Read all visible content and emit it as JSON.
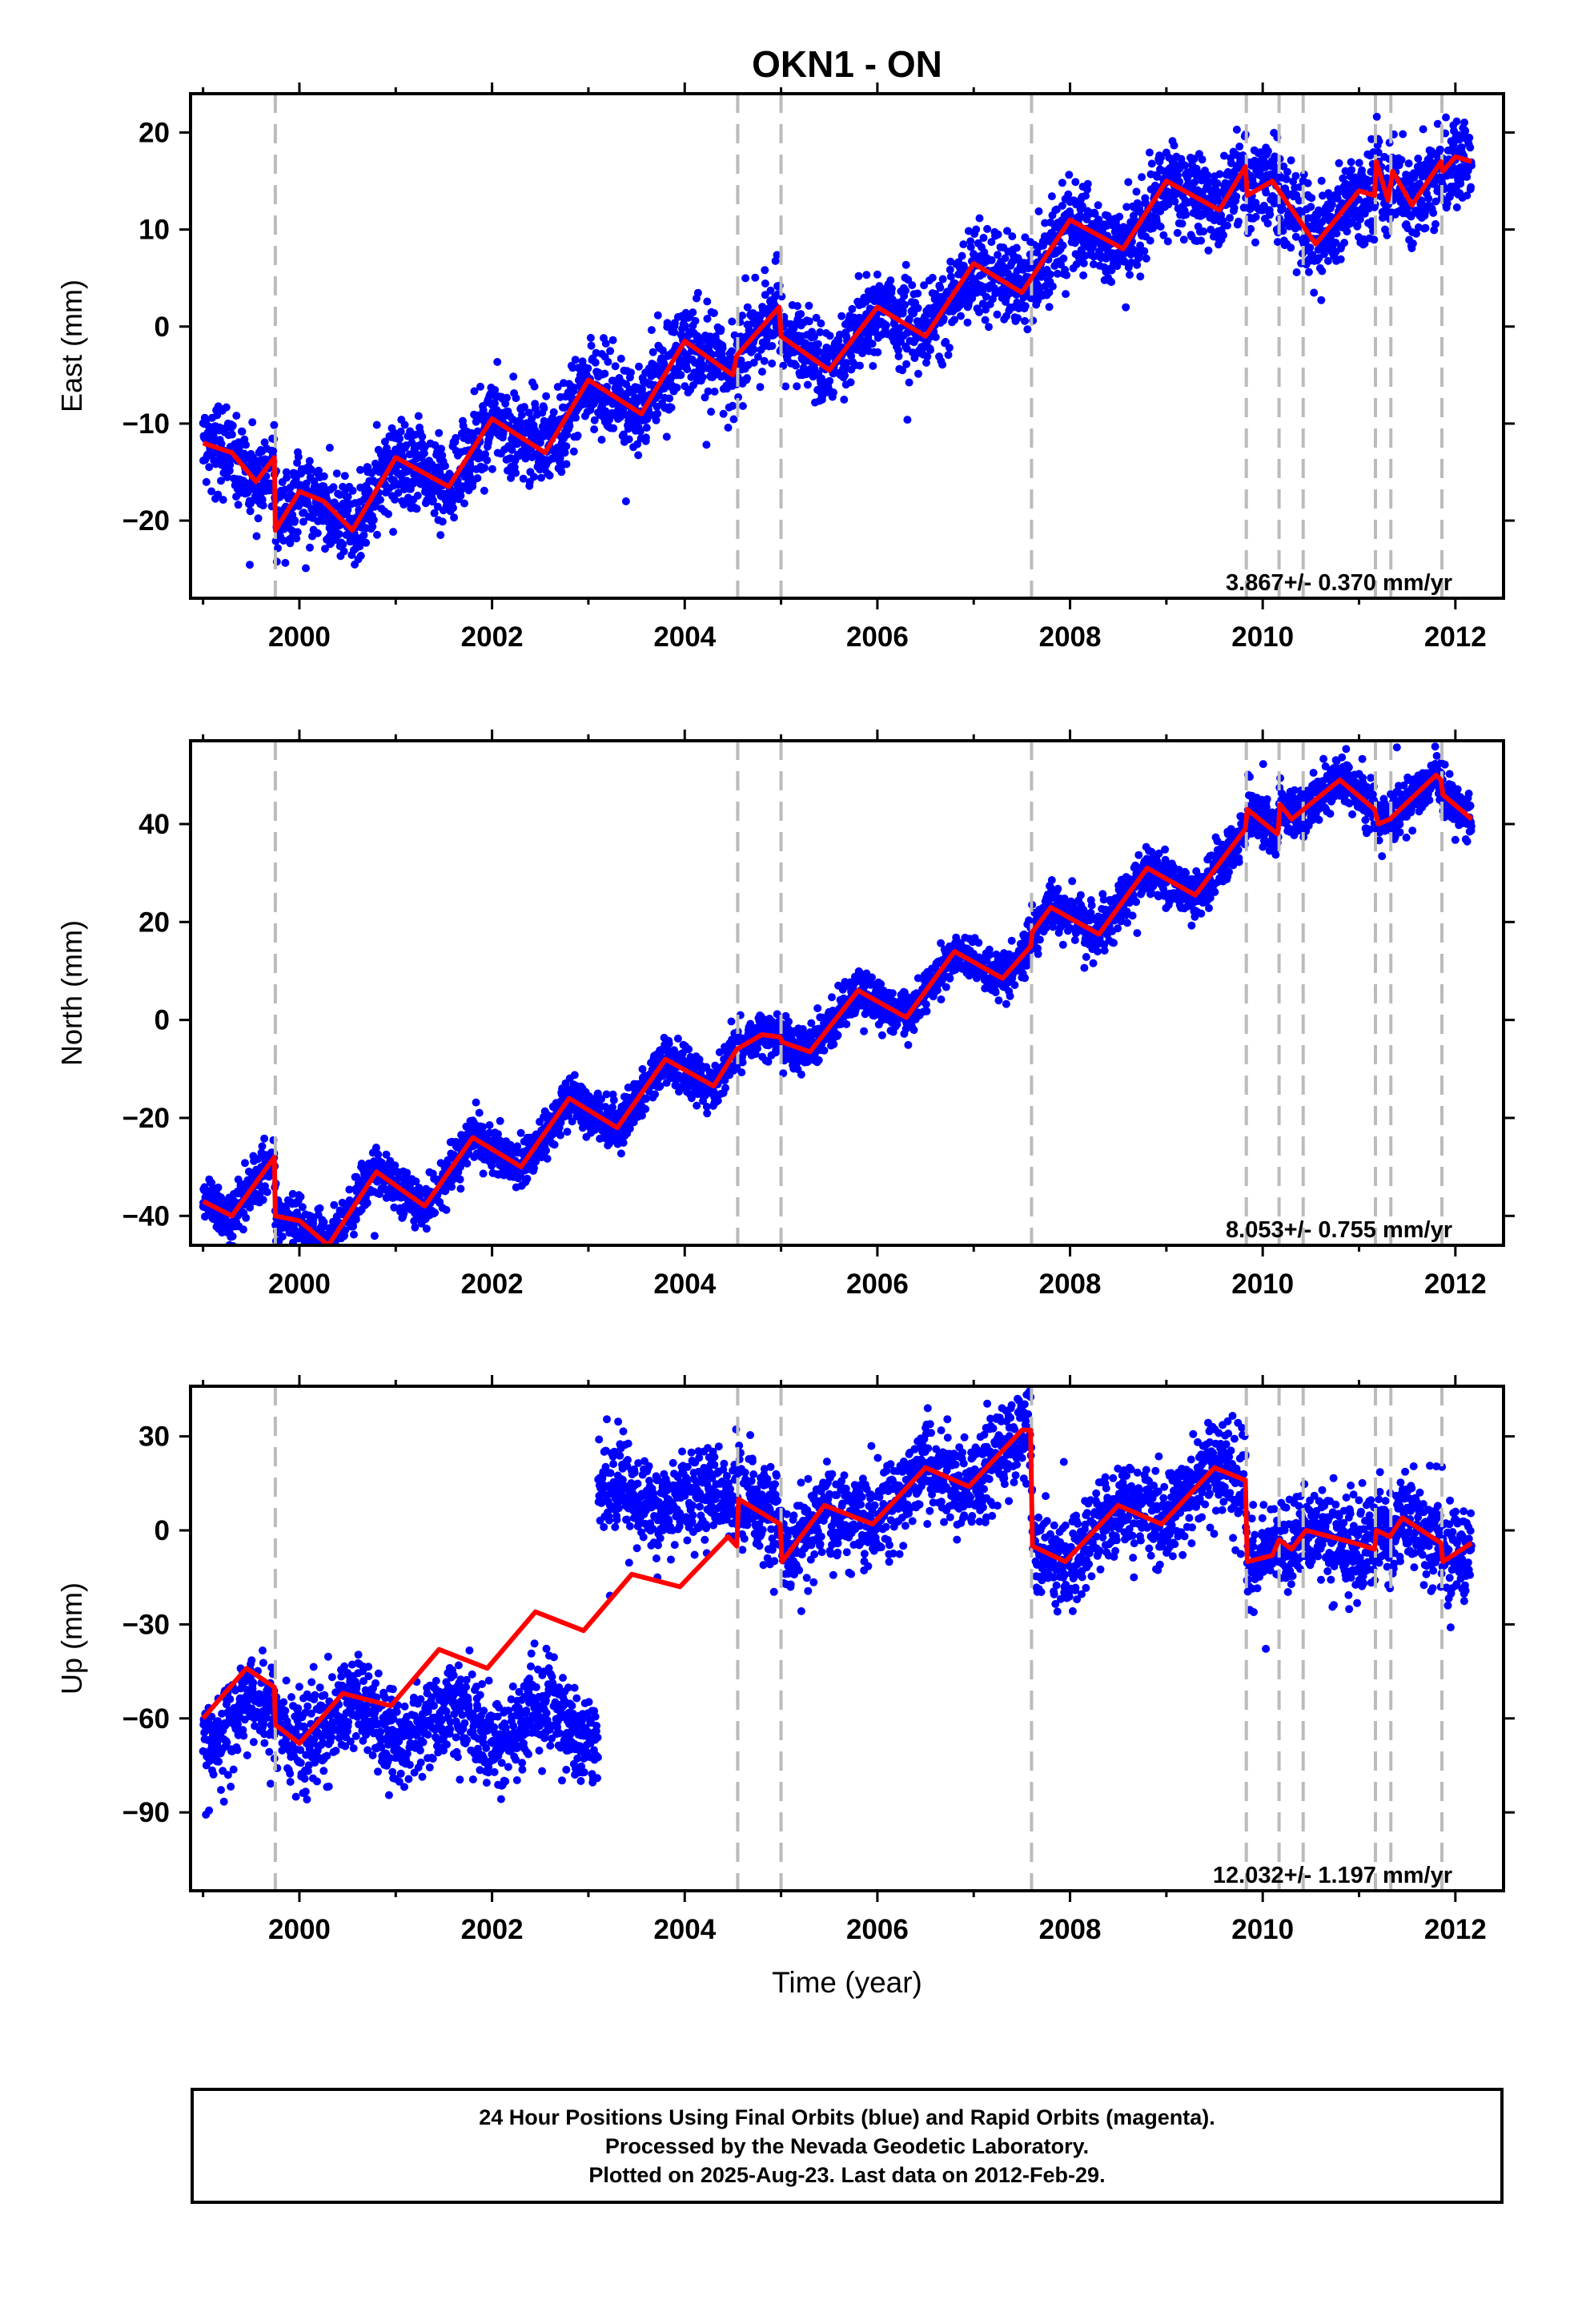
{
  "colors": {
    "observations": "#0000ff",
    "model": "#ff0000",
    "offsets": "#bbbbbb",
    "frame": "#000000"
  },
  "chart_data": {
    "type": "scatter",
    "title": "OKN1 - ON",
    "xlabel": "Time (year)",
    "xlim": [
      1998.87,
      2012.5
    ],
    "xticks": [
      2000,
      2002,
      2004,
      2006,
      2008,
      2010,
      2012
    ],
    "xtick_labels": [
      "2000",
      "2002",
      "2004",
      "2006",
      "2008",
      "2010",
      "2012"
    ],
    "offset_epochs": [
      1999.75,
      2004.55,
      2005.0,
      2007.6,
      2009.83,
      2010.17,
      2010.42,
      2011.17,
      2011.33,
      2011.86
    ],
    "data_start": 1999.0,
    "data_end": "2012-Feb-29",
    "panels": [
      {
        "name": "east",
        "ylabel": "East (mm)",
        "ylim": [
          -28,
          24
        ],
        "yticks": [
          -20,
          -10,
          0,
          10,
          20
        ],
        "ytick_labels": [
          "−20",
          "−10",
          "0",
          "10",
          "20"
        ],
        "rate_label": "3.867+/- 0.370 mm/yr",
        "model": [
          [
            1999.0,
            -12.0
          ],
          [
            1999.3,
            -13.0
          ],
          [
            1999.55,
            -16.0
          ],
          [
            1999.74,
            -13.5
          ],
          [
            1999.75,
            -21.0
          ],
          [
            2000.0,
            -17.0
          ],
          [
            2000.25,
            -18.0
          ],
          [
            2000.55,
            -21.0
          ],
          [
            2001.0,
            -13.5
          ],
          [
            2001.55,
            -16.5
          ],
          [
            2002.0,
            -9.5
          ],
          [
            2002.55,
            -13.0
          ],
          [
            2003.0,
            -5.5
          ],
          [
            2003.55,
            -9.0
          ],
          [
            2004.0,
            -1.5
          ],
          [
            2004.5,
            -5.0
          ],
          [
            2004.54,
            -3.0
          ],
          [
            2004.98,
            2.0
          ],
          [
            2005.0,
            -1.0
          ],
          [
            2005.5,
            -4.5
          ],
          [
            2006.0,
            2.0
          ],
          [
            2006.5,
            -1.0
          ],
          [
            2007.0,
            6.5
          ],
          [
            2007.5,
            3.5
          ],
          [
            2008.0,
            11.0
          ],
          [
            2008.55,
            8.0
          ],
          [
            2009.0,
            15.0
          ],
          [
            2009.55,
            12.0
          ],
          [
            2009.82,
            16.5
          ],
          [
            2009.84,
            13.5
          ],
          [
            2010.1,
            15.0
          ],
          [
            2010.55,
            8.5
          ],
          [
            2011.0,
            14.0
          ],
          [
            2011.16,
            13.5
          ],
          [
            2011.18,
            17.0
          ],
          [
            2011.3,
            13.0
          ],
          [
            2011.35,
            16.0
          ],
          [
            2011.55,
            12.5
          ],
          [
            2011.85,
            17.0
          ],
          [
            2011.87,
            16.0
          ],
          [
            2012.0,
            17.5
          ],
          [
            2012.17,
            17.0
          ]
        ]
      },
      {
        "name": "north",
        "ylabel": "North (mm)",
        "ylim": [
          -46,
          57
        ],
        "yticks": [
          -40,
          -20,
          0,
          20,
          40
        ],
        "ytick_labels": [
          "−40",
          "−20",
          "0",
          "20",
          "40"
        ],
        "rate_label": "8.053+/- 0.755 mm/yr",
        "model": [
          [
            1999.0,
            -37.0
          ],
          [
            1999.3,
            -40.0
          ],
          [
            1999.74,
            -28.0
          ],
          [
            1999.75,
            -40.0
          ],
          [
            2000.0,
            -41.0
          ],
          [
            2000.3,
            -46.0
          ],
          [
            2000.8,
            -31.0
          ],
          [
            2001.3,
            -38.0
          ],
          [
            2001.8,
            -24.0
          ],
          [
            2002.3,
            -30.0
          ],
          [
            2002.8,
            -16.0
          ],
          [
            2003.3,
            -22.0
          ],
          [
            2003.8,
            -8.0
          ],
          [
            2004.3,
            -13.5
          ],
          [
            2004.54,
            -6.0
          ],
          [
            2004.8,
            -3.0
          ],
          [
            2004.99,
            -3.5
          ],
          [
            2005.01,
            -4.5
          ],
          [
            2005.3,
            -6.5
          ],
          [
            2005.8,
            6.0
          ],
          [
            2006.3,
            0.5
          ],
          [
            2006.8,
            14.0
          ],
          [
            2007.3,
            8.5
          ],
          [
            2007.59,
            15.0
          ],
          [
            2007.61,
            18.0
          ],
          [
            2007.8,
            23.0
          ],
          [
            2008.3,
            17.5
          ],
          [
            2008.8,
            31.0
          ],
          [
            2009.3,
            25.5
          ],
          [
            2009.82,
            39.0
          ],
          [
            2009.84,
            43.0
          ],
          [
            2010.15,
            38.0
          ],
          [
            2010.16,
            38.5
          ],
          [
            2010.18,
            44.0
          ],
          [
            2010.3,
            41.0
          ],
          [
            2010.8,
            49.0
          ],
          [
            2011.16,
            43.0
          ],
          [
            2011.2,
            40.0
          ],
          [
            2011.32,
            41.0
          ],
          [
            2011.8,
            50.0
          ],
          [
            2011.85,
            49.0
          ],
          [
            2011.87,
            46.0
          ],
          [
            2012.17,
            41.0
          ]
        ]
      },
      {
        "name": "up",
        "ylabel": "Up (mm)",
        "ylim": [
          -115,
          46
        ],
        "yticks": [
          -90,
          -60,
          -30,
          0,
          30
        ],
        "ytick_labels": [
          "−90",
          "−60",
          "−30",
          "0",
          "30"
        ],
        "rate_label": "12.032+/- 1.197 mm/yr",
        "model": [
          [
            1999.0,
            -60.0
          ],
          [
            1999.45,
            -44.0
          ],
          [
            1999.74,
            -50.0
          ],
          [
            1999.75,
            -62.0
          ],
          [
            2000.0,
            -68.0
          ],
          [
            2000.45,
            -52.0
          ],
          [
            2000.95,
            -56.0
          ],
          [
            2001.45,
            -38.0
          ],
          [
            2001.95,
            -44.0
          ],
          [
            2002.45,
            -26.0
          ],
          [
            2002.95,
            -32.0
          ],
          [
            2003.45,
            -14.0
          ],
          [
            2003.95,
            -18.0
          ],
          [
            2004.45,
            -2.0
          ],
          [
            2004.54,
            -5.0
          ],
          [
            2004.56,
            10.0
          ],
          [
            2004.99,
            2.0
          ],
          [
            2005.01,
            -10.0
          ],
          [
            2005.45,
            8.0
          ],
          [
            2005.95,
            2.0
          ],
          [
            2006.5,
            20.0
          ],
          [
            2006.95,
            14.0
          ],
          [
            2007.5,
            32.0
          ],
          [
            2007.59,
            32.0
          ],
          [
            2007.61,
            -5.0
          ],
          [
            2007.95,
            -10.0
          ],
          [
            2008.5,
            8.0
          ],
          [
            2008.95,
            2.0
          ],
          [
            2009.5,
            20.0
          ],
          [
            2009.82,
            16.0
          ],
          [
            2009.84,
            -10.0
          ],
          [
            2010.1,
            -8.0
          ],
          [
            2010.17,
            -3.0
          ],
          [
            2010.3,
            -6.0
          ],
          [
            2010.45,
            0.0
          ],
          [
            2010.95,
            -4.0
          ],
          [
            2011.16,
            -6.0
          ],
          [
            2011.18,
            0.0
          ],
          [
            2011.32,
            -2.0
          ],
          [
            2011.45,
            4.0
          ],
          [
            2011.85,
            -4.0
          ],
          [
            2011.87,
            -10.0
          ],
          [
            2012.17,
            -4.0
          ]
        ]
      }
    ]
  },
  "footer": {
    "line1": "24 Hour Positions Using Final Orbits (blue) and Rapid Orbits (magenta).",
    "line2": "Processed by the Nevada Geodetic Laboratory.",
    "line3": "Plotted on 2025-Aug-23. Last data on 2012-Feb-29."
  }
}
